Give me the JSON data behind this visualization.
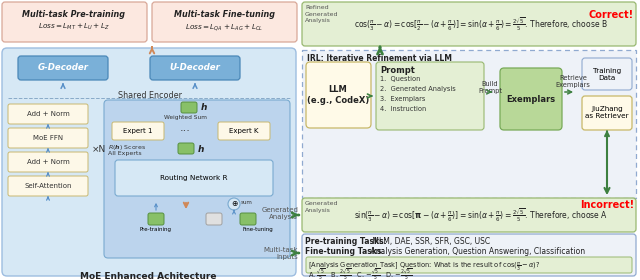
{
  "bg_color": "#ffffff",
  "left_panel": {
    "outer_box_color": "#9dbde0",
    "outer_box_fill": "#d6e8f5",
    "shared_encoder_label": "Shared Encoder",
    "inner_moe_fill": "#bcd4ed",
    "inner_moe_edge": "#7aaad0",
    "decoder_fill": "#7ab0d8",
    "decoder_edge": "#4a88b8",
    "g_decoder_label": "G-Decoder",
    "u_decoder_label": "U-Decoder",
    "left_stack_fill": "#fdf8e8",
    "left_stack_edge": "#c8b870",
    "routing_fill": "#d6e8f5",
    "routing_edge": "#7aaad0",
    "expert_fill": "#fdf8e8",
    "expert_edge": "#c8b870",
    "green_node_fill": "#88c068",
    "green_node_edge": "#559040"
  },
  "top_boxes": {
    "pretrain_fill": "#fce8e0",
    "pretrain_edge": "#d8a898",
    "finetune_fill": "#fce8e0",
    "finetune_edge": "#d8a898"
  },
  "right_panel": {
    "irl_box_fill": "#eef2f8",
    "irl_box_edge": "#90aad0",
    "llm_fill": "#fffae8",
    "llm_edge": "#c8b868",
    "prompt_fill": "#e4efd4",
    "prompt_edge": "#98b870",
    "exemplar_fill": "#b8d898",
    "exemplar_edge": "#78aa58",
    "training_fill": "#eef2f8",
    "training_edge": "#90aad0",
    "jiuzhang_fill": "#fffae8",
    "jiuzhang_edge": "#c8b868",
    "correct_box_fill": "#e4efd4",
    "correct_box_edge": "#98b870",
    "incorrect_box_fill": "#e4efd4",
    "incorrect_box_edge": "#98b870",
    "multitask_fill": "#eef2f8",
    "multitask_edge": "#90aad0",
    "inner_q_fill": "#e4efd4",
    "inner_q_edge": "#98b870"
  },
  "orange_arrow": "#d08858",
  "green_arrow": "#3d8040",
  "blue_arrow": "#5890c8"
}
